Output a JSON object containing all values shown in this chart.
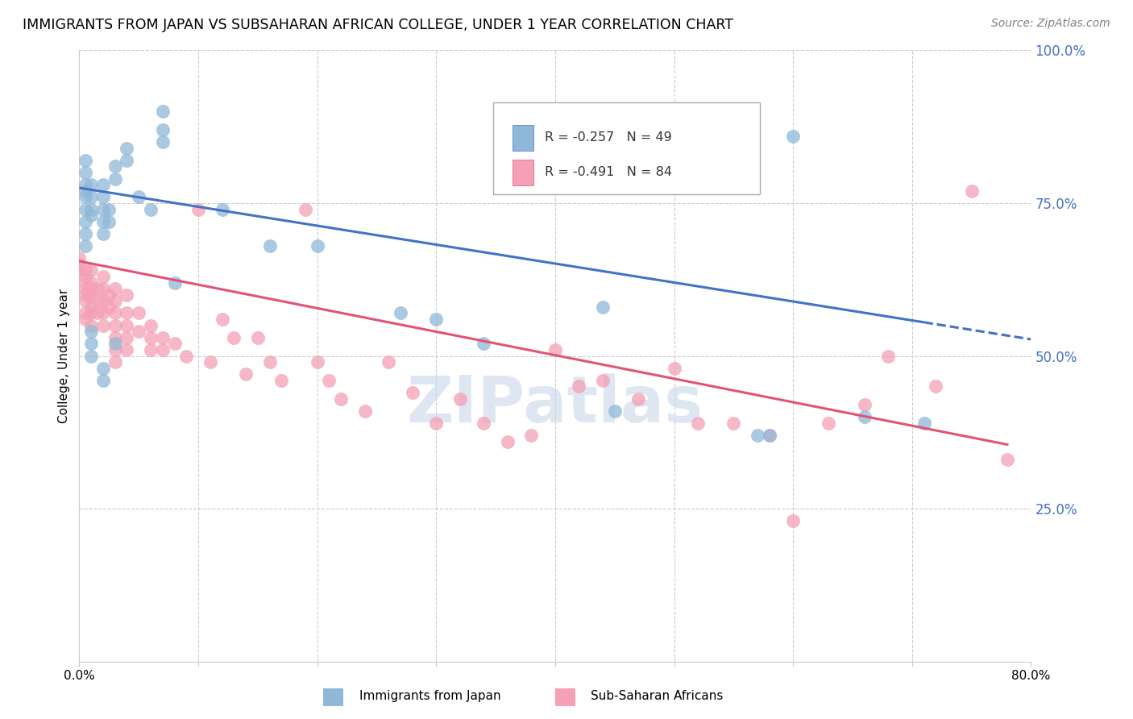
{
  "title": "IMMIGRANTS FROM JAPAN VS SUBSAHARAN AFRICAN COLLEGE, UNDER 1 YEAR CORRELATION CHART",
  "source": "Source: ZipAtlas.com",
  "ylabel": "College, Under 1 year",
  "x_min": 0.0,
  "x_max": 0.8,
  "y_min": 0.0,
  "y_max": 1.0,
  "y_ticks_right": [
    0.25,
    0.5,
    0.75,
    1.0
  ],
  "y_tick_labels_right": [
    "25.0%",
    "50.0%",
    "75.0%",
    "100.0%"
  ],
  "legend_r1": "-0.257",
  "legend_n1": "49",
  "legend_r2": "-0.491",
  "legend_n2": "84",
  "color_japan": "#8FB8D8",
  "color_africa": "#F4A0B5",
  "color_line_japan": "#4472C4",
  "color_line_africa": "#E05575",
  "color_axis_right": "#4472C4",
  "color_grid": "#CCCCCC",
  "watermark": "ZIPatlas",
  "japan_line_x0": 0.0,
  "japan_line_y0": 0.775,
  "japan_line_x1": 0.71,
  "japan_line_y1": 0.555,
  "africa_line_x0": 0.0,
  "africa_line_y0": 0.655,
  "africa_line_x1": 0.78,
  "africa_line_y1": 0.355,
  "japan_x": [
    0.005,
    0.005,
    0.005,
    0.005,
    0.005,
    0.01,
    0.01,
    0.01,
    0.01,
    0.005,
    0.005,
    0.005,
    0.005,
    0.02,
    0.02,
    0.02,
    0.02,
    0.02,
    0.025,
    0.025,
    0.03,
    0.03,
    0.04,
    0.04,
    0.05,
    0.06,
    0.07,
    0.07,
    0.07,
    0.08,
    0.01,
    0.01,
    0.01,
    0.02,
    0.02,
    0.03,
    0.12,
    0.16,
    0.2,
    0.27,
    0.3,
    0.34,
    0.44,
    0.45,
    0.57,
    0.58,
    0.6,
    0.66,
    0.71
  ],
  "japan_y": [
    0.76,
    0.77,
    0.78,
    0.8,
    0.82,
    0.73,
    0.74,
    0.76,
    0.78,
    0.68,
    0.7,
    0.72,
    0.74,
    0.7,
    0.72,
    0.74,
    0.76,
    0.78,
    0.72,
    0.74,
    0.79,
    0.81,
    0.82,
    0.84,
    0.76,
    0.74,
    0.85,
    0.87,
    0.9,
    0.62,
    0.54,
    0.52,
    0.5,
    0.48,
    0.46,
    0.52,
    0.74,
    0.68,
    0.68,
    0.57,
    0.56,
    0.52,
    0.58,
    0.41,
    0.37,
    0.37,
    0.86,
    0.4,
    0.39
  ],
  "africa_x": [
    0.0,
    0.0,
    0.0,
    0.005,
    0.005,
    0.005,
    0.005,
    0.005,
    0.005,
    0.005,
    0.005,
    0.01,
    0.01,
    0.01,
    0.01,
    0.01,
    0.01,
    0.01,
    0.015,
    0.015,
    0.015,
    0.02,
    0.02,
    0.02,
    0.02,
    0.02,
    0.025,
    0.025,
    0.03,
    0.03,
    0.03,
    0.03,
    0.03,
    0.03,
    0.03,
    0.04,
    0.04,
    0.04,
    0.04,
    0.04,
    0.05,
    0.05,
    0.06,
    0.06,
    0.06,
    0.07,
    0.07,
    0.08,
    0.09,
    0.1,
    0.11,
    0.12,
    0.13,
    0.14,
    0.15,
    0.16,
    0.17,
    0.19,
    0.2,
    0.21,
    0.22,
    0.24,
    0.26,
    0.28,
    0.3,
    0.32,
    0.34,
    0.36,
    0.38,
    0.4,
    0.42,
    0.44,
    0.47,
    0.5,
    0.52,
    0.55,
    0.58,
    0.6,
    0.63,
    0.66,
    0.68,
    0.72,
    0.75,
    0.78
  ],
  "africa_y": [
    0.64,
    0.65,
    0.66,
    0.63,
    0.64,
    0.62,
    0.61,
    0.6,
    0.59,
    0.57,
    0.56,
    0.64,
    0.62,
    0.61,
    0.6,
    0.58,
    0.57,
    0.55,
    0.61,
    0.59,
    0.57,
    0.63,
    0.61,
    0.59,
    0.57,
    0.55,
    0.6,
    0.58,
    0.61,
    0.59,
    0.57,
    0.55,
    0.53,
    0.51,
    0.49,
    0.6,
    0.57,
    0.55,
    0.53,
    0.51,
    0.57,
    0.54,
    0.55,
    0.53,
    0.51,
    0.53,
    0.51,
    0.52,
    0.5,
    0.74,
    0.49,
    0.56,
    0.53,
    0.47,
    0.53,
    0.49,
    0.46,
    0.74,
    0.49,
    0.46,
    0.43,
    0.41,
    0.49,
    0.44,
    0.39,
    0.43,
    0.39,
    0.36,
    0.37,
    0.51,
    0.45,
    0.46,
    0.43,
    0.48,
    0.39,
    0.39,
    0.37,
    0.23,
    0.39,
    0.42,
    0.5,
    0.45,
    0.77,
    0.33
  ]
}
